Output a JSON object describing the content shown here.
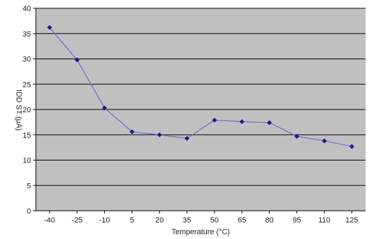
{
  "chart_data": {
    "type": "line",
    "xlabel": "Temperature (°C)",
    "ylabel": "IDD ST (μA)",
    "x_ticks": [
      -40,
      -25,
      -10,
      5,
      20,
      35,
      50,
      65,
      80,
      95,
      110,
      125
    ],
    "xlim": [
      -47.5,
      132.5
    ],
    "ylim": [
      0,
      40
    ],
    "y_ticks": [
      0,
      5,
      10,
      15,
      20,
      25,
      30,
      35,
      40
    ],
    "grid": true,
    "colors": {
      "plot_bg": "#c0c0c0",
      "grid": "#000000",
      "line": "#6a6ad0",
      "marker": "#1a1a8a"
    },
    "series": [
      {
        "x": [
          -40,
          -25,
          -10,
          5,
          20,
          35,
          50,
          65,
          80,
          95,
          110,
          125
        ],
        "y": [
          36.2,
          29.8,
          20.3,
          15.6,
          15.0,
          14.3,
          17.9,
          17.6,
          17.4,
          14.7,
          13.8,
          12.7
        ]
      }
    ]
  }
}
